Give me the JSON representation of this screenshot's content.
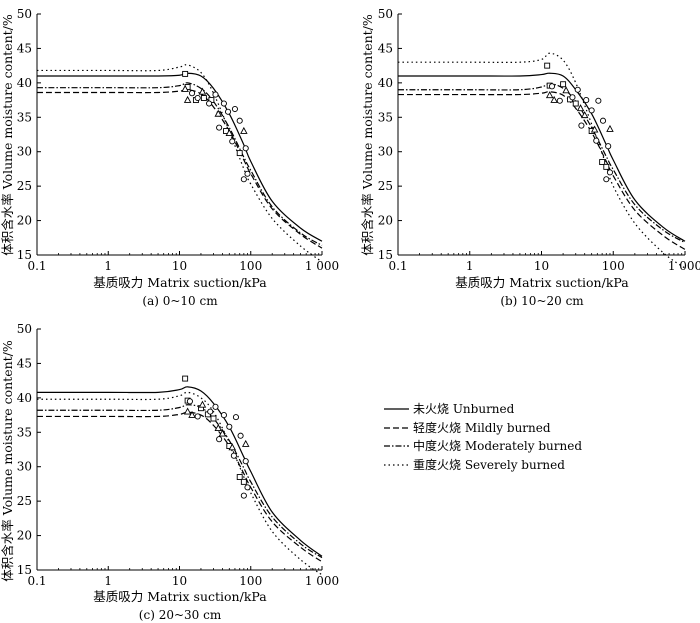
{
  "figure": {
    "legend": {
      "unburned": "未火烧 Unburned",
      "mildly": "轻度火烧 Mildly burned",
      "moderately": "中度火烧 Moderately burned",
      "severely": "重度火烧 Severely burned"
    }
  },
  "chart_data": [
    {
      "type": "line",
      "panel": "a",
      "caption": "(a) 0~10 cm",
      "xlabel": "基质吸力 Matrix suction/kPa",
      "ylabel": "体积含水率 Volume moisture content/%",
      "xscale": "log",
      "xlim": [
        0.1,
        1000
      ],
      "ylim": [
        15,
        50
      ],
      "xticks": [
        0.1,
        1,
        10,
        100,
        1000
      ],
      "xtick_labels": [
        "0.1",
        "1",
        "10",
        "100",
        "1 000"
      ],
      "yticks": [
        15,
        20,
        25,
        30,
        35,
        40,
        45,
        50
      ],
      "x": [
        0.1,
        1,
        5,
        10,
        13,
        20,
        30,
        50,
        80,
        100,
        200,
        500,
        1000
      ],
      "series": [
        {
          "name": "未火烧 Unburned",
          "style": "solid",
          "values": [
            41.0,
            41.0,
            41.0,
            41.1,
            41.4,
            41.0,
            39.2,
            35.5,
            31.0,
            28.6,
            22.8,
            18.9,
            17.0
          ]
        },
        {
          "name": "轻度火烧 Mildly burned",
          "style": "dash",
          "values": [
            38.6,
            38.6,
            38.6,
            38.8,
            39.0,
            38.4,
            36.5,
            33.0,
            28.8,
            26.8,
            21.7,
            18.0,
            16.0
          ]
        },
        {
          "name": "中度火烧 Moderately burned",
          "style": "dashdot",
          "values": [
            39.3,
            39.3,
            39.3,
            39.6,
            40.0,
            39.2,
            37.3,
            33.5,
            29.2,
            27.3,
            22.0,
            18.2,
            16.4
          ]
        },
        {
          "name": "重度火烧 Severely burned",
          "style": "dot",
          "values": [
            41.8,
            41.8,
            41.8,
            42.3,
            42.6,
            41.5,
            38.5,
            33.0,
            27.5,
            25.3,
            20.3,
            16.3,
            14.0
          ]
        }
      ],
      "observed": [
        {
          "marker": "square",
          "points": [
            [
              12,
              41.3
            ],
            [
              13,
              39.4
            ],
            [
              17,
              37.5
            ],
            [
              22,
              37.8
            ],
            [
              28,
              37.5
            ],
            [
              45,
              33.0
            ],
            [
              70,
              29.8
            ]
          ]
        },
        {
          "marker": "triangle",
          "points": [
            [
              12,
              39.1
            ],
            [
              13,
              37.5
            ],
            [
              21,
              38.7
            ],
            [
              35,
              35.5
            ],
            [
              50,
              32.7
            ],
            [
              80,
              33.0
            ]
          ]
        },
        {
          "marker": "circle",
          "points": [
            [
              15,
              38.5
            ],
            [
              18,
              37.8
            ],
            [
              26,
              37.0
            ],
            [
              32,
              38.3
            ],
            [
              36,
              33.5
            ],
            [
              42,
              37.0
            ],
            [
              48,
              35.8
            ],
            [
              55,
              31.5
            ],
            [
              60,
              36.2
            ],
            [
              70,
              34.5
            ],
            [
              80,
              26.0
            ],
            [
              85,
              30.5
            ],
            [
              90,
              26.8
            ]
          ]
        }
      ]
    },
    {
      "type": "line",
      "panel": "b",
      "caption": "(b) 10~20 cm",
      "xlabel": "基质吸力 Matrix suction/kPa",
      "ylabel": "体积含水率 Volume moisture content/%",
      "xscale": "log",
      "xlim": [
        0.1,
        1000
      ],
      "ylim": [
        15,
        50
      ],
      "xticks": [
        0.1,
        1,
        10,
        100,
        1000
      ],
      "xtick_labels": [
        "0.1",
        "1",
        "10",
        "100",
        "1 000"
      ],
      "yticks": [
        15,
        20,
        25,
        30,
        35,
        40,
        45,
        50
      ],
      "x": [
        0.1,
        1,
        5,
        10,
        13,
        20,
        30,
        50,
        80,
        100,
        200,
        500,
        1000
      ],
      "series": [
        {
          "name": "未火烧 Unburned",
          "style": "solid",
          "values": [
            41.0,
            41.0,
            41.0,
            41.2,
            41.4,
            41.0,
            39.0,
            35.5,
            31.0,
            28.8,
            23.0,
            19.0,
            17.0
          ]
        },
        {
          "name": "轻度火烧 Mildly burned",
          "style": "dash",
          "values": [
            38.3,
            38.3,
            38.3,
            38.5,
            38.7,
            38.2,
            36.3,
            32.8,
            28.6,
            26.5,
            21.5,
            17.8,
            15.8
          ]
        },
        {
          "name": "中度火烧 Moderately burned",
          "style": "dashdot",
          "values": [
            39.0,
            39.0,
            39.0,
            39.4,
            39.9,
            39.2,
            37.3,
            33.5,
            29.3,
            27.4,
            22.3,
            18.6,
            16.8
          ]
        },
        {
          "name": "重度火烧 Severely burned",
          "style": "dot",
          "values": [
            43.0,
            43.0,
            43.0,
            43.4,
            44.3,
            43.3,
            40.0,
            34.0,
            28.0,
            25.0,
            19.6,
            15.3,
            13.1
          ]
        }
      ],
      "observed": [
        {
          "marker": "square",
          "points": [
            [
              12,
              42.5
            ],
            [
              13,
              39.6
            ],
            [
              20,
              39.8
            ],
            [
              25,
              37.6
            ],
            [
              30,
              37.0
            ],
            [
              50,
              33.0
            ],
            [
              70,
              28.5
            ],
            [
              80,
              27.8
            ]
          ]
        },
        {
          "marker": "triangle",
          "points": [
            [
              13,
              38.2
            ],
            [
              15,
              37.5
            ],
            [
              22,
              38.9
            ],
            [
              35,
              36.3
            ],
            [
              40,
              35.3
            ],
            [
              55,
              33.2
            ],
            [
              90,
              33.3
            ]
          ]
        },
        {
          "marker": "circle",
          "points": [
            [
              14,
              39.5
            ],
            [
              18,
              37.4
            ],
            [
              27,
              37.9
            ],
            [
              32,
              39.0
            ],
            [
              36,
              33.8
            ],
            [
              42,
              37.5
            ],
            [
              50,
              36.0
            ],
            [
              58,
              31.6
            ],
            [
              62,
              37.4
            ],
            [
              72,
              34.5
            ],
            [
              80,
              26.0
            ],
            [
              85,
              30.8
            ],
            [
              90,
              27.0
            ]
          ]
        }
      ]
    },
    {
      "type": "line",
      "panel": "c",
      "caption": "(c) 20~30 cm",
      "xlabel": "基质吸力 Matrix suction/kPa",
      "ylabel": "体积含水率 Volume moisture content/%",
      "xscale": "log",
      "xlim": [
        0.1,
        1000
      ],
      "ylim": [
        15,
        50
      ],
      "xticks": [
        0.1,
        1,
        10,
        100,
        1000
      ],
      "xtick_labels": [
        "0.1",
        "1",
        "10",
        "100",
        "1 000"
      ],
      "yticks": [
        15,
        20,
        25,
        30,
        35,
        40,
        45,
        50
      ],
      "x": [
        0.1,
        1,
        5,
        10,
        13,
        20,
        30,
        50,
        80,
        100,
        200,
        500,
        1000
      ],
      "series": [
        {
          "name": "未火烧 Unburned",
          "style": "solid",
          "values": [
            40.8,
            40.8,
            40.8,
            41.2,
            41.6,
            41.0,
            39.2,
            35.8,
            31.4,
            29.3,
            23.4,
            19.3,
            17.0
          ]
        },
        {
          "name": "轻度火烧 Mildly burned",
          "style": "dash",
          "values": [
            37.3,
            37.3,
            37.3,
            37.6,
            37.9,
            37.5,
            36.0,
            33.0,
            29.0,
            27.0,
            22.0,
            18.3,
            16.2
          ]
        },
        {
          "name": "中度火烧 Moderately burned",
          "style": "dashdot",
          "values": [
            38.2,
            38.2,
            38.2,
            38.6,
            39.0,
            38.6,
            37.0,
            33.8,
            29.8,
            27.8,
            22.7,
            18.8,
            16.8
          ]
        },
        {
          "name": "重度火烧 Severely burned",
          "style": "dot",
          "values": [
            39.8,
            39.8,
            39.8,
            40.3,
            40.8,
            40.0,
            38.0,
            33.5,
            28.5,
            26.2,
            20.6,
            16.5,
            14.3
          ]
        }
      ],
      "observed": [
        {
          "marker": "square",
          "points": [
            [
              12,
              42.8
            ],
            [
              13,
              39.6
            ],
            [
              20,
              38.5
            ],
            [
              25,
              37.6
            ],
            [
              30,
              37.0
            ],
            [
              50,
              33.0
            ],
            [
              70,
              28.5
            ],
            [
              80,
              27.8
            ]
          ]
        },
        {
          "marker": "triangle",
          "points": [
            [
              13,
              38.0
            ],
            [
              15,
              37.5
            ],
            [
              21,
              39.0
            ],
            [
              35,
              35.6
            ],
            [
              40,
              34.8
            ],
            [
              55,
              32.8
            ],
            [
              85,
              33.3
            ]
          ]
        },
        {
          "marker": "circle",
          "points": [
            [
              14,
              39.5
            ],
            [
              18,
              37.3
            ],
            [
              27,
              38.0
            ],
            [
              32,
              38.7
            ],
            [
              36,
              34.0
            ],
            [
              42,
              37.5
            ],
            [
              50,
              35.8
            ],
            [
              58,
              31.6
            ],
            [
              62,
              37.2
            ],
            [
              72,
              34.5
            ],
            [
              80,
              25.8
            ],
            [
              85,
              30.8
            ],
            [
              90,
              27.0
            ]
          ]
        }
      ]
    }
  ]
}
